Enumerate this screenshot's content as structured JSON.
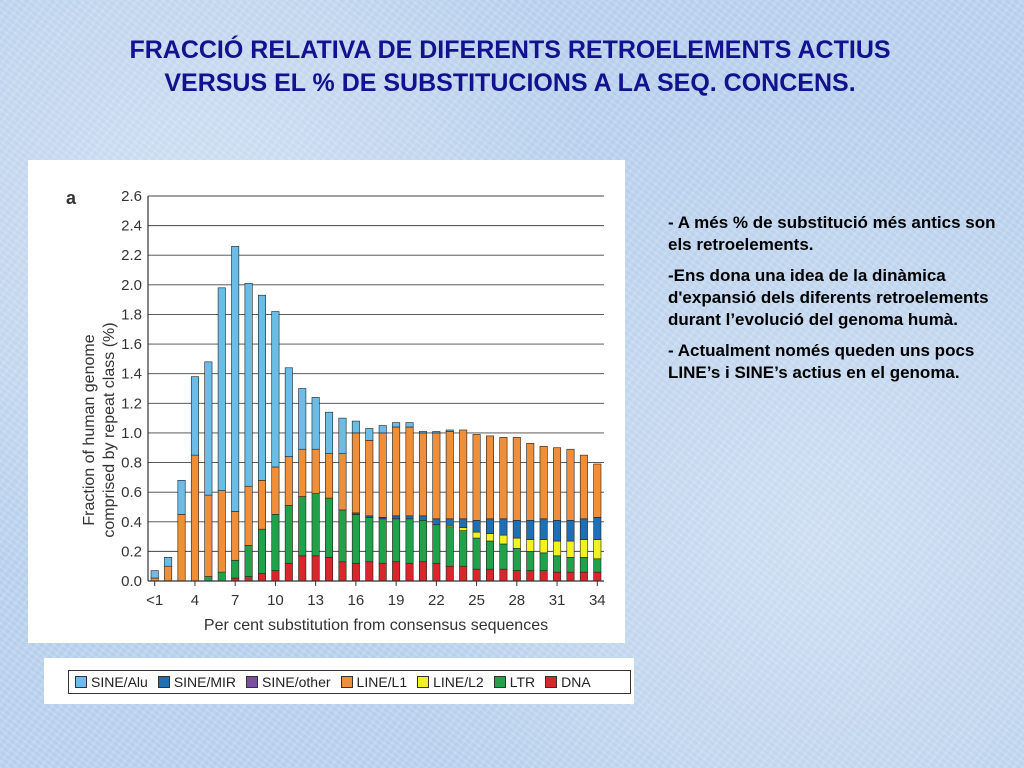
{
  "slide": {
    "title_line1": "FRACCIÓ RELATIVA DE DIFERENTS RETROELEMENTS ACTIUS",
    "title_line2": "VERSUS EL %  DE SUBSTITUCIONS A LA SEQ. CONCENS.",
    "notes": [
      "- A més % de substitució més antics son els retroelements.",
      "-Ens dona una idea de la dinàmica d'expansió dels diferents retroelements durant l’evolució del genoma humà.",
      "- Actualment només queden uns pocs LINE’s i SINE’s actius en el genoma."
    ]
  },
  "chart_data": {
    "type": "bar",
    "stacked": true,
    "panel_label": "a",
    "xlabel": "Per cent substitution from consensus sequences",
    "ylabel_line1": "Fraction of human genome",
    "ylabel_line2": "comprised by repeat class (%)",
    "ylim": [
      0,
      2.6
    ],
    "yticks": [
      "0.0",
      "0.2",
      "0.4",
      "0.6",
      "0.8",
      "1.0",
      "1.2",
      "1.4",
      "1.6",
      "1.8",
      "2.0",
      "2.2",
      "2.4",
      "2.6"
    ],
    "ytick_values": [
      0,
      0.2,
      0.4,
      0.6,
      0.8,
      1.0,
      1.2,
      1.4,
      1.6,
      1.8,
      2.0,
      2.2,
      2.4,
      2.6
    ],
    "grid": true,
    "categories": [
      "<1",
      "2",
      "3",
      "4",
      "5",
      "6",
      "7",
      "8",
      "9",
      "10",
      "11",
      "12",
      "13",
      "14",
      "15",
      "16",
      "17",
      "18",
      "19",
      "20",
      "21",
      "22",
      "23",
      "24",
      "25",
      "26",
      "27",
      "28",
      "29",
      "30",
      "31",
      "32",
      "33",
      "34"
    ],
    "xtick_labels": [
      "<1",
      "4",
      "7",
      "10",
      "13",
      "16",
      "19",
      "22",
      "25",
      "28",
      "31",
      "34"
    ],
    "xtick_indices": [
      0,
      3,
      6,
      9,
      12,
      15,
      18,
      21,
      24,
      27,
      30,
      33
    ],
    "series": [
      {
        "name": "DNA",
        "color": "#d9262b",
        "values": [
          0,
          0,
          0,
          0,
          0,
          0,
          0.02,
          0.03,
          0.05,
          0.07,
          0.12,
          0.17,
          0.17,
          0.16,
          0.13,
          0.12,
          0.13,
          0.12,
          0.13,
          0.12,
          0.13,
          0.12,
          0.1,
          0.1,
          0.08,
          0.08,
          0.08,
          0.07,
          0.07,
          0.07,
          0.06,
          0.06,
          0.06,
          0.06
        ]
      },
      {
        "name": "LTR",
        "color": "#21a24a",
        "values": [
          0,
          0,
          0,
          0,
          0.03,
          0.06,
          0.12,
          0.21,
          0.3,
          0.38,
          0.39,
          0.4,
          0.42,
          0.4,
          0.35,
          0.33,
          0.3,
          0.3,
          0.29,
          0.3,
          0.28,
          0.26,
          0.26,
          0.24,
          0.21,
          0.19,
          0.17,
          0.15,
          0.13,
          0.12,
          0.11,
          0.1,
          0.1,
          0.09
        ]
      },
      {
        "name": "LINE/L2",
        "color": "#f2f21e",
        "values": [
          0,
          0,
          0,
          0,
          0,
          0,
          0,
          0,
          0,
          0,
          0,
          0,
          0,
          0,
          0,
          0,
          0,
          0,
          0,
          0,
          0,
          0,
          0.01,
          0.02,
          0.04,
          0.05,
          0.06,
          0.07,
          0.08,
          0.09,
          0.1,
          0.11,
          0.12,
          0.13
        ]
      },
      {
        "name": "SINE/other",
        "color": "#7a4fa3",
        "values": [
          0,
          0,
          0,
          0,
          0,
          0,
          0,
          0,
          0,
          0,
          0,
          0,
          0,
          0,
          0,
          0,
          0,
          0,
          0,
          0,
          0,
          0,
          0,
          0,
          0,
          0,
          0,
          0,
          0,
          0,
          0,
          0,
          0,
          0
        ]
      },
      {
        "name": "SINE/MIR",
        "color": "#1f6fb5",
        "values": [
          0,
          0,
          0,
          0,
          0,
          0,
          0,
          0,
          0,
          0,
          0,
          0,
          0,
          0,
          0,
          0.01,
          0.01,
          0.01,
          0.02,
          0.02,
          0.03,
          0.04,
          0.05,
          0.06,
          0.08,
          0.1,
          0.11,
          0.12,
          0.13,
          0.14,
          0.14,
          0.14,
          0.14,
          0.15
        ]
      },
      {
        "name": "LINE/L1",
        "color": "#f08f3a",
        "values": [
          0.02,
          0.1,
          0.45,
          0.85,
          0.55,
          0.55,
          0.33,
          0.4,
          0.33,
          0.32,
          0.33,
          0.32,
          0.3,
          0.3,
          0.38,
          0.54,
          0.51,
          0.57,
          0.6,
          0.6,
          0.56,
          0.58,
          0.59,
          0.6,
          0.58,
          0.56,
          0.55,
          0.56,
          0.52,
          0.49,
          0.49,
          0.48,
          0.43,
          0.36
        ]
      },
      {
        "name": "SINE/Alu",
        "color": "#6bbce6",
        "values": [
          0.05,
          0.06,
          0.23,
          0.53,
          0.9,
          1.37,
          1.79,
          1.37,
          1.25,
          1.05,
          0.6,
          0.41,
          0.35,
          0.28,
          0.24,
          0.08,
          0.08,
          0.05,
          0.03,
          0.03,
          0.01,
          0.01,
          0.01,
          0,
          0,
          0,
          0,
          0,
          0,
          0,
          0,
          0,
          0,
          0
        ]
      }
    ],
    "legend_order": [
      "SINE/Alu",
      "SINE/MIR",
      "SINE/other",
      "LINE/L1",
      "LINE/L2",
      "LTR",
      "DNA"
    ]
  }
}
